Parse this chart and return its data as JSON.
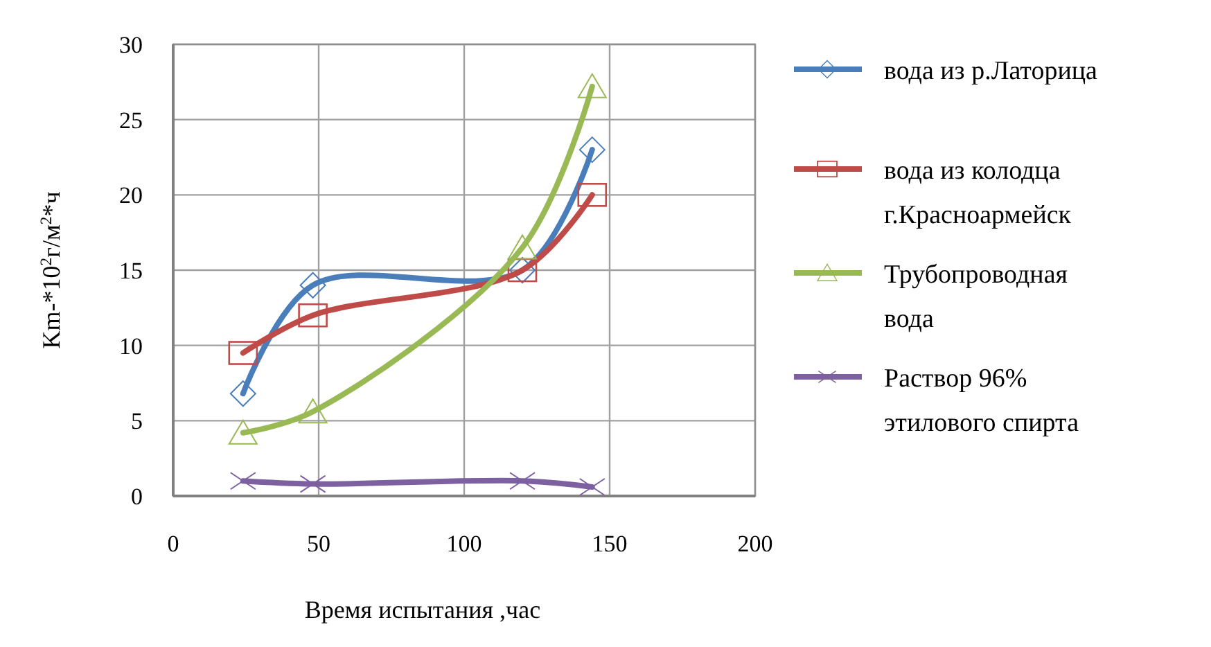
{
  "chart_data": {
    "type": "line",
    "xlabel": "Время испытания ,час",
    "ylabel": "Km-*10$^{2}$г/м$^{2}$*ч",
    "x": [
      24,
      48,
      120,
      144
    ],
    "xlim": [
      0,
      200
    ],
    "xticks": [
      0,
      50,
      100,
      150,
      200
    ],
    "ylim": [
      0,
      30
    ],
    "yticks": [
      0,
      5,
      10,
      15,
      20,
      25,
      30
    ],
    "grid": true,
    "legend": "right",
    "series": [
      {
        "name": "вода из р.Латорица",
        "color": "#4a7ebb",
        "marker": "diamond",
        "values": [
          6.8,
          14,
          15,
          23
        ]
      },
      {
        "name": "вода из колодца г.Красноармейск",
        "color": "#be4b48",
        "marker": "square",
        "values": [
          9.5,
          12,
          15,
          20
        ]
      },
      {
        "name": "Трубопроводная вода",
        "color": "#98b954",
        "marker": "triangle",
        "values": [
          4.2,
          5.6,
          16.5,
          27.2
        ]
      },
      {
        "name": "Раствор 96% этилового спирта",
        "color": "#7d60a0",
        "marker": "cross",
        "values": [
          1,
          0.8,
          1,
          0.6
        ]
      }
    ]
  }
}
